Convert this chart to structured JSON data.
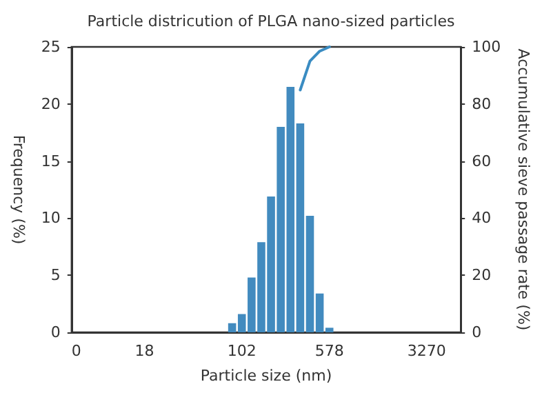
{
  "chart_data": {
    "type": "bar",
    "title": "Particle districution of PLGA nano-sized particles",
    "xlabel": "Particle size (nm)",
    "ylabel": "Frequency (%)",
    "y2label": "Accumulative sieve passage rate (%)",
    "categories": [
      "0",
      null,
      null,
      null,
      null,
      null,
      null,
      "18",
      null,
      null,
      null,
      null,
      null,
      null,
      null,
      null,
      null,
      "102",
      null,
      null,
      null,
      null,
      null,
      null,
      null,
      null,
      "578",
      null,
      null,
      null,
      null,
      null,
      null,
      null,
      null,
      null,
      "3270",
      null,
      null,
      null
    ],
    "series": [
      {
        "type": "line",
        "axis": "y2",
        "color": "#3a8cc2",
        "marker": "none",
        "line_style": "solid",
        "values": [
          null,
          null,
          null,
          null,
          null,
          null,
          null,
          null,
          null,
          null,
          null,
          null,
          null,
          null,
          null,
          null,
          null,
          null,
          null,
          null,
          null,
          null,
          null,
          84.9,
          95,
          98.5,
          100,
          null,
          null,
          null,
          null,
          null,
          null,
          null,
          null,
          null,
          null,
          null,
          null,
          null
        ]
      },
      {
        "color": "#428bbf",
        "values": [
          null,
          null,
          null,
          null,
          null,
          null,
          null,
          null,
          null,
          null,
          null,
          null,
          null,
          null,
          null,
          null,
          0.8,
          1.6,
          4.8,
          7.9,
          11.9,
          18,
          21.5,
          18.3,
          10.2,
          3.4,
          0.4,
          null,
          null,
          null,
          null,
          null,
          null,
          null,
          null,
          null,
          null,
          null,
          null,
          null
        ]
      }
    ],
    "ylim": [
      0,
      25
    ],
    "yticks": [
      0,
      5,
      10,
      15,
      20,
      25
    ],
    "y2lim": [
      0,
      100
    ],
    "y2ticks": [
      0,
      20,
      40,
      60,
      80,
      100
    ],
    "grid": false
  }
}
